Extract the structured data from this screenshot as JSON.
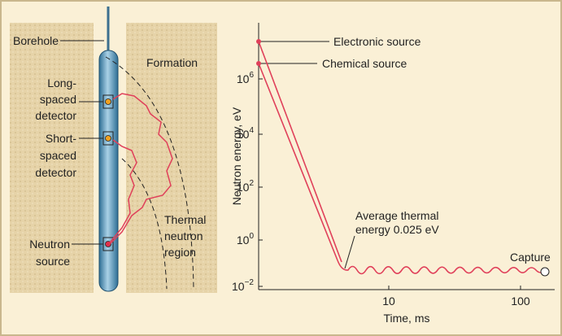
{
  "diagram": {
    "borehole": "Borehole",
    "formation": "Formation",
    "long_spaced_detector": [
      "Long-",
      "spaced",
      "detector"
    ],
    "short_spaced_detector": [
      "Short-",
      "spaced",
      "detector"
    ],
    "neutron_source": [
      "Neutron",
      "source"
    ],
    "thermal_region": [
      "Thermal",
      "neutron",
      "region"
    ]
  },
  "graph": {
    "y_label": "Neutron energy, eV",
    "x_label": "Time, ms",
    "y_ticks": [
      {
        "base": "10",
        "exponent": "6"
      },
      {
        "base": "10",
        "exponent": "4"
      },
      {
        "base": "10",
        "exponent": "2"
      },
      {
        "base": "10",
        "exponent": "0"
      },
      {
        "base": "10",
        "exponent": "−2"
      }
    ],
    "x_ticks": [
      "10",
      "100"
    ],
    "electronic_source": "Electronic source",
    "chemical_source": "Chemical source",
    "thermal_energy": [
      "Average thermal",
      "energy 0.025 eV"
    ],
    "capture": "Capture"
  }
}
